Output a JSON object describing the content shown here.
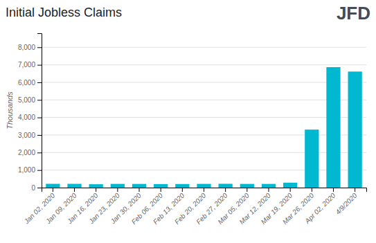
{
  "chart_data": {
    "type": "bar",
    "title": "Initial Jobless Claims",
    "ylabel": "Thousands",
    "categories": [
      "Jan 02, 2020",
      "Jan 09, 2020",
      "Jan 16, 2020",
      "Jan 23, 2020",
      "Jan 30, 2020",
      "Feb 06, 2020",
      "Feb 13, 2020",
      "Feb 20, 2020",
      "Feb 27, 2020",
      "Mar 05, 2020",
      "Mar 12, 2020",
      "Mar 19, 2020",
      "Mar 26, 2020",
      "Apr 02, 2020",
      "4/9/2020"
    ],
    "values": [
      216,
      215,
      193,
      212,
      210,
      203,
      205,
      213,
      218,
      211,
      211,
      282,
      3307,
      6867,
      6615
    ],
    "color": "#00b9d1",
    "ylim": [
      0,
      8800
    ],
    "yticks": [
      0,
      {
        "value": 1000,
        "label": "1,000"
      },
      {
        "value": 2000,
        "label": "2,000"
      },
      {
        "value": 3000,
        "label": "3,000"
      },
      {
        "value": 4000,
        "label": "4,000"
      },
      {
        "value": 5000,
        "label": "5,000"
      },
      {
        "value": 6000,
        "label": "6,000"
      },
      {
        "value": 7000,
        "label": "7,000"
      },
      {
        "value": 8000,
        "label": "8,000"
      }
    ],
    "grid": true,
    "annotations": [
      {
        "text": "JFD",
        "color": "#444c56"
      }
    ]
  }
}
